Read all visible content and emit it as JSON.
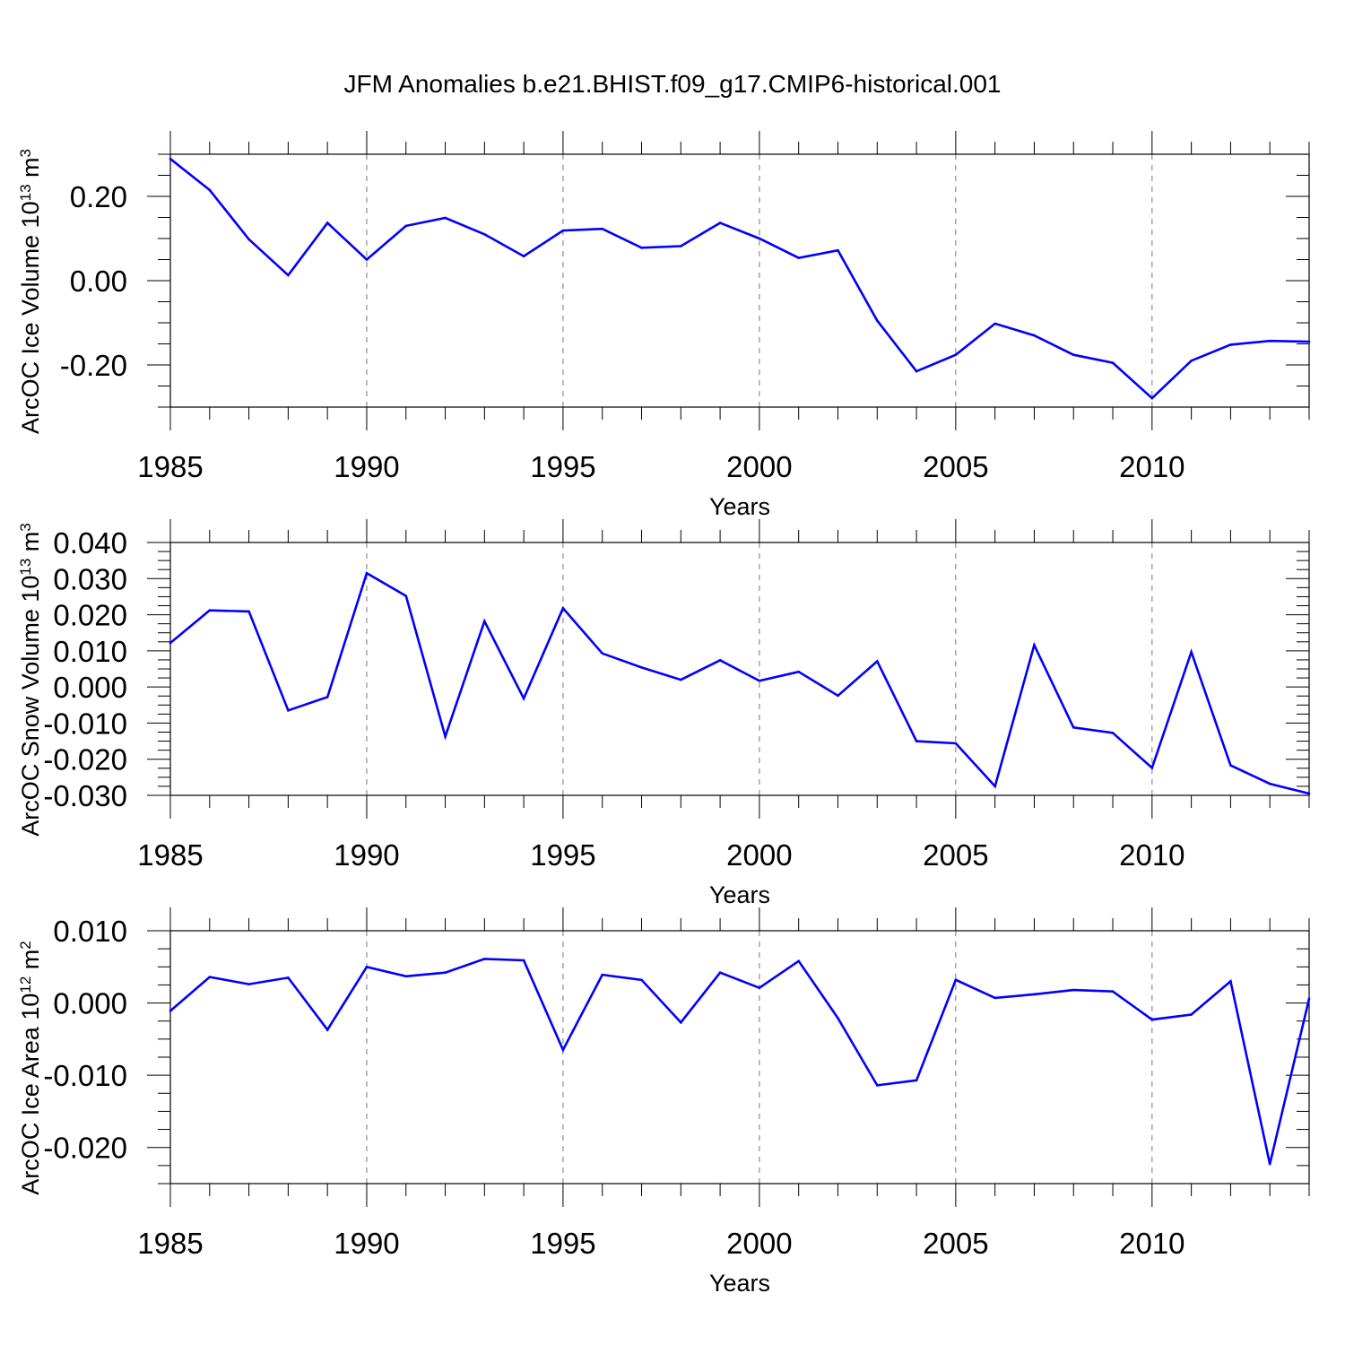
{
  "title": "JFM Anomalies b.e21.BHIST.f09_g17.CMIP6-historical.001",
  "colors": {
    "line": "#0000ff",
    "axis": "#000000",
    "grid": "#777777"
  },
  "chart_data": [
    {
      "type": "line",
      "ylabel": "ArcOC Ice Volume 10",
      "ylabel_sup": "13",
      "ylabel_unit": " m",
      "ylabel_unit_sup": "3",
      "xlabel": "Years",
      "xlim": [
        1985,
        2014
      ],
      "ylim": [
        -0.3,
        0.3
      ],
      "yticks": [
        -0.2,
        0.0,
        0.2
      ],
      "ytick_labels": [
        "-0.20",
        "0.00",
        "0.20"
      ],
      "yminor": 0.05,
      "xticks": [
        1985,
        1990,
        1995,
        2000,
        2005,
        2010
      ],
      "xtick_labels": [
        "1985",
        "1990",
        "1995",
        "2000",
        "2005",
        "2010"
      ],
      "x": [
        1985,
        1986,
        1987,
        1988,
        1989,
        1990,
        1991,
        1992,
        1993,
        1994,
        1995,
        1996,
        1997,
        1998,
        1999,
        2000,
        2001,
        2002,
        2003,
        2004,
        2005,
        2006,
        2007,
        2008,
        2009,
        2010,
        2011,
        2012,
        2013,
        2014
      ],
      "y": [
        0.289,
        0.215,
        0.098,
        0.013,
        0.137,
        0.05,
        0.13,
        0.149,
        0.11,
        0.058,
        0.119,
        0.123,
        0.078,
        0.082,
        0.137,
        0.1,
        0.054,
        0.072,
        -0.095,
        -0.215,
        -0.176,
        -0.102,
        -0.13,
        -0.176,
        -0.195,
        -0.279,
        -0.19,
        -0.152,
        -0.143,
        -0.145
      ]
    },
    {
      "type": "line",
      "ylabel": "ArcOC Snow Volume 10",
      "ylabel_sup": "13",
      "ylabel_unit": " m",
      "ylabel_unit_sup": "3",
      "xlabel": "Years",
      "xlim": [
        1985,
        2014
      ],
      "ylim": [
        -0.03,
        0.04
      ],
      "yticks": [
        -0.03,
        -0.02,
        -0.01,
        0.0,
        0.01,
        0.02,
        0.03,
        0.04
      ],
      "ytick_labels": [
        "-0.030",
        "-0.020",
        "-0.010",
        "0.000",
        "0.010",
        "0.020",
        "0.030",
        "0.040"
      ],
      "yminor": 0.0025,
      "xticks": [
        1985,
        1990,
        1995,
        2000,
        2005,
        2010
      ],
      "xtick_labels": [
        "1985",
        "1990",
        "1995",
        "2000",
        "2005",
        "2010"
      ],
      "x": [
        1985,
        1986,
        1987,
        1988,
        1989,
        1990,
        1991,
        1992,
        1993,
        1994,
        1995,
        1996,
        1997,
        1998,
        1999,
        2000,
        2001,
        2002,
        2003,
        2004,
        2005,
        2006,
        2007,
        2008,
        2009,
        2010,
        2011,
        2012,
        2013,
        2014
      ],
      "y": [
        0.0122,
        0.0212,
        0.0209,
        -0.0065,
        -0.0028,
        0.0315,
        0.0252,
        -0.0137,
        0.0182,
        -0.0032,
        0.0218,
        0.0093,
        0.0054,
        0.002,
        0.0074,
        0.0017,
        0.0042,
        -0.0024,
        0.0071,
        -0.015,
        -0.0156,
        -0.0275,
        0.0116,
        -0.0112,
        -0.0127,
        -0.0224,
        0.0097,
        -0.0217,
        -0.0268,
        -0.0295
      ]
    },
    {
      "type": "line",
      "ylabel": "ArcOC Ice Area 10",
      "ylabel_sup": "12",
      "ylabel_unit": " m",
      "ylabel_unit_sup": "2",
      "xlabel": "Years",
      "xlim": [
        1985,
        2014
      ],
      "ylim": [
        -0.025,
        0.01
      ],
      "yticks": [
        -0.02,
        -0.01,
        0.0,
        0.01
      ],
      "ytick_labels": [
        "-0.020",
        "-0.010",
        "0.000",
        "0.010"
      ],
      "yminor": 0.0025,
      "xticks": [
        1985,
        1990,
        1995,
        2000,
        2005,
        2010
      ],
      "xtick_labels": [
        "1985",
        "1990",
        "1995",
        "2000",
        "2005",
        "2010"
      ],
      "x": [
        1985,
        1986,
        1987,
        1988,
        1989,
        1990,
        1991,
        1992,
        1993,
        1994,
        1995,
        1996,
        1997,
        1998,
        1999,
        2000,
        2001,
        2002,
        2003,
        2004,
        2005,
        2006,
        2007,
        2008,
        2009,
        2010,
        2011,
        2012,
        2013,
        2014
      ],
      "y": [
        -0.0011,
        0.0036,
        0.0026,
        0.0035,
        -0.0037,
        0.005,
        0.0037,
        0.0042,
        0.0061,
        0.0059,
        -0.0065,
        0.0039,
        0.0032,
        -0.0027,
        0.0042,
        0.0021,
        0.0058,
        -0.0021,
        -0.0114,
        -0.0107,
        0.0032,
        0.0007,
        0.0012,
        0.0018,
        0.0016,
        -0.0023,
        -0.0016,
        0.003,
        -0.0223,
        0.0006
      ]
    }
  ]
}
